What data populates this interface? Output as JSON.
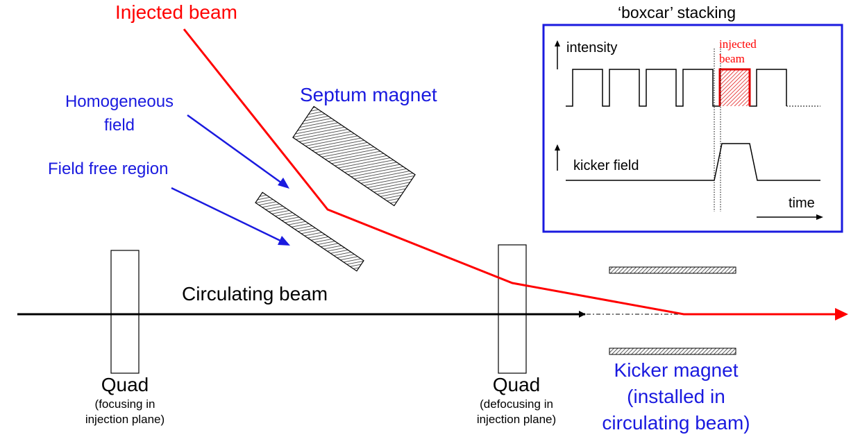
{
  "labels": {
    "injected_beam": "Injected beam",
    "homogeneous_field_line1": "Homogeneous",
    "homogeneous_field_line2": "field",
    "field_free_region": "Field free region",
    "septum_magnet": "Septum magnet",
    "circulating_beam": "Circulating beam",
    "quad_left": "Quad",
    "quad_left_note_line1": "(focusing in",
    "quad_left_note_line2": "injection plane)",
    "quad_right": "Quad",
    "quad_right_note_line1": "(defocusing in",
    "quad_right_note_line2": "injection plane)",
    "kicker_line1": "Kicker magnet",
    "kicker_line2": "(installed in",
    "kicker_line3": "circulating beam)"
  },
  "inset": {
    "title": "‘boxcar’ stacking",
    "intensity": "intensity",
    "injected_line1": "injected",
    "injected_line2": "beam",
    "kicker_field": "kicker field",
    "time": "time"
  },
  "colors": {
    "injected": "#ff0000",
    "annotation": "#1a1adf",
    "inset_border": "#1a1adf",
    "circulating": "#000000"
  }
}
